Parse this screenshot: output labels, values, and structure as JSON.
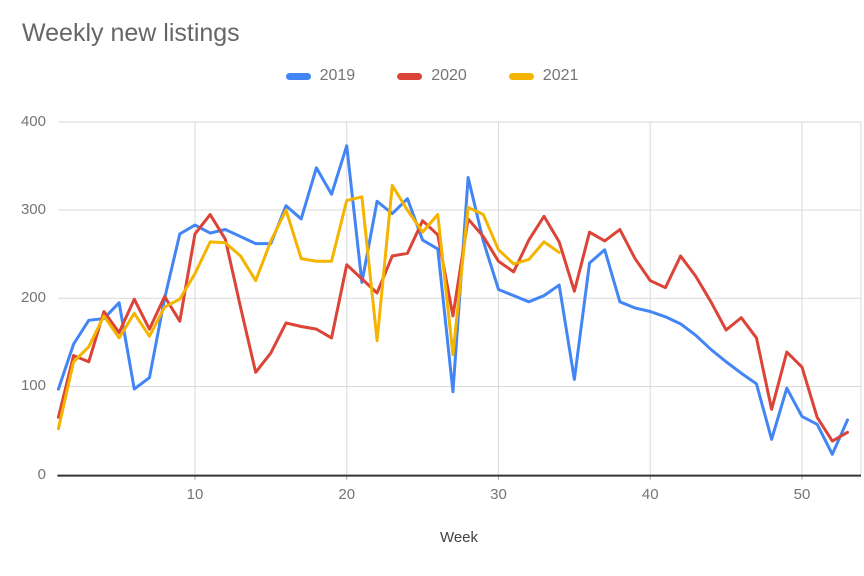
{
  "chart_data": {
    "type": "line",
    "title": "Weekly new listings",
    "xlabel": "Week",
    "ylabel": "",
    "xlim": [
      1,
      53
    ],
    "ylim": [
      0,
      400
    ],
    "grid": true,
    "legend_position": "top",
    "x_ticks": [
      10,
      20,
      30,
      40,
      50
    ],
    "y_ticks": [
      0,
      100,
      200,
      300,
      400
    ],
    "weeks": [
      1,
      2,
      3,
      4,
      5,
      6,
      7,
      8,
      9,
      10,
      11,
      12,
      13,
      14,
      15,
      16,
      17,
      18,
      19,
      20,
      21,
      22,
      23,
      24,
      25,
      26,
      27,
      28,
      29,
      30,
      31,
      32,
      33,
      34,
      35,
      36,
      37,
      38,
      39,
      40,
      41,
      42,
      43,
      44,
      45,
      46,
      47,
      48,
      49,
      50,
      51,
      52,
      53
    ],
    "series": [
      {
        "name": "2019",
        "color": "#4285f4",
        "values": [
          97,
          148,
          175,
          177,
          195,
          97,
          110,
          200,
          273,
          283,
          274,
          278,
          270,
          262,
          262,
          305,
          290,
          348,
          318,
          373,
          218,
          310,
          296,
          313,
          266,
          256,
          94,
          337,
          265,
          210,
          203,
          196,
          203,
          215,
          108,
          240,
          255,
          196,
          189,
          185,
          179,
          171,
          158,
          142,
          128,
          115,
          103,
          40,
          98,
          66,
          57,
          23,
          62
        ]
      },
      {
        "name": "2020",
        "color": "#db4437",
        "values": [
          65,
          135,
          128,
          185,
          161,
          199,
          165,
          202,
          174,
          273,
          295,
          267,
          190,
          116,
          138,
          172,
          168,
          165,
          155,
          238,
          222,
          206,
          248,
          251,
          288,
          272,
          180,
          290,
          270,
          242,
          230,
          266,
          293,
          264,
          208,
          275,
          265,
          278,
          245,
          220,
          212,
          248,
          225,
          196,
          164,
          178,
          155,
          74,
          139,
          122,
          65,
          38,
          48
        ]
      },
      {
        "name": "2021",
        "color": "#f4b400",
        "values": [
          52,
          128,
          145,
          180,
          155,
          183,
          157,
          190,
          199,
          228,
          264,
          263,
          248,
          220,
          265,
          300,
          245,
          242,
          242,
          311,
          315,
          152,
          328,
          300,
          275,
          295,
          136,
          303,
          295,
          255,
          239,
          244,
          264,
          252
        ]
      }
    ]
  },
  "style_colors": {
    "title_text": "#666666",
    "tick_text": "#757575",
    "axis_title_text": "#424242",
    "gridline": "#d9d9d9",
    "baseline": "#333333",
    "tick_mark": "#9e9e9e",
    "background": "#ffffff"
  }
}
